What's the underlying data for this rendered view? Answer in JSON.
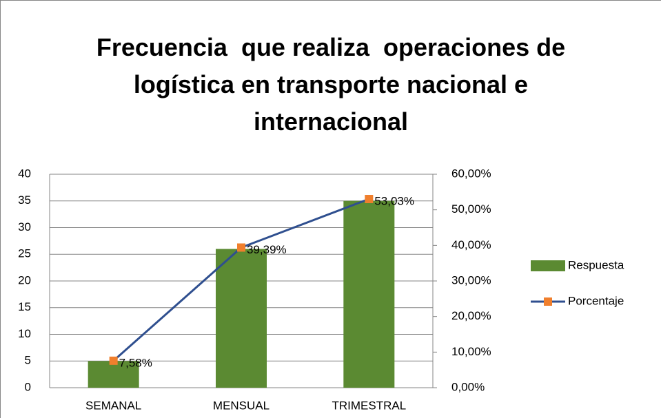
{
  "chart_data": {
    "type": "bar",
    "title": "Frecuencia  que realiza  operaciones de logística en transporte nacional e internacional",
    "categories": [
      "SEMANAL",
      "MENSUAL",
      "TRIMESTRAL"
    ],
    "series": [
      {
        "name": "Respuesta",
        "type": "bar",
        "color": "#5b8a32",
        "values": [
          5,
          26,
          35
        ]
      },
      {
        "name": "Porcentaje",
        "type": "line",
        "axis": "y2",
        "color": "#2f4f8f",
        "marker_color": "#f07f2d",
        "values": [
          7.58,
          39.39,
          53.03
        ],
        "value_labels": [
          "7,58%",
          "39,39%",
          "53,03%"
        ]
      }
    ],
    "ylim": [
      0,
      40
    ],
    "yticks": [
      0,
      5,
      10,
      15,
      20,
      25,
      30,
      35,
      40
    ],
    "y2lim": [
      0,
      60
    ],
    "y2ticks": [
      {
        "value": 0,
        "label": "0,00%"
      },
      {
        "value": 10,
        "label": "10,00%"
      },
      {
        "value": 20,
        "label": "20,00%"
      },
      {
        "value": 30,
        "label": "30,00%"
      },
      {
        "value": 40,
        "label": "40,00%"
      },
      {
        "value": 50,
        "label": "50,00%"
      },
      {
        "value": 60,
        "label": "60,00%"
      }
    ],
    "grid": true,
    "legend": "right"
  }
}
